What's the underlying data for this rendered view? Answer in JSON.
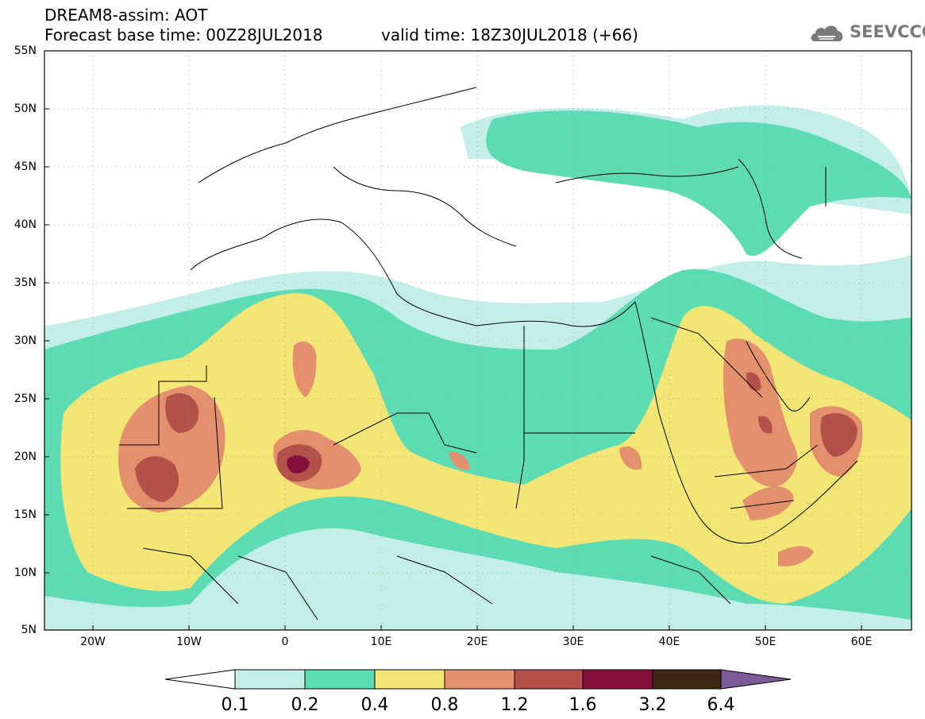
{
  "header": {
    "title": "DREAM8-assim: AOT",
    "base_time": "Forecast base time: 00Z28JUL2018",
    "valid_time": "valid time: 18Z30JUL2018 (+66)"
  },
  "logo": {
    "text": "SEEVCCC",
    "icon": "cloud-icon"
  },
  "map": {
    "lat_labels": [
      "55N",
      "50N",
      "45N",
      "40N",
      "35N",
      "30N",
      "25N",
      "20N",
      "15N",
      "10N",
      "5N"
    ],
    "lon_labels": [
      "20W",
      "10W",
      "0",
      "10E",
      "20E",
      "30E",
      "40E",
      "50E",
      "60E"
    ]
  },
  "colorbar": {
    "labels": [
      "0.1",
      "0.2",
      "0.4",
      "0.8",
      "1.2",
      "1.6",
      "3.2",
      "6.4"
    ],
    "colors": [
      "#c4efe8",
      "#5ddcb3",
      "#f3e576",
      "#e3906c",
      "#b2504a",
      "#840f3a",
      "#3d2815",
      "#7c5b98"
    ]
  }
}
